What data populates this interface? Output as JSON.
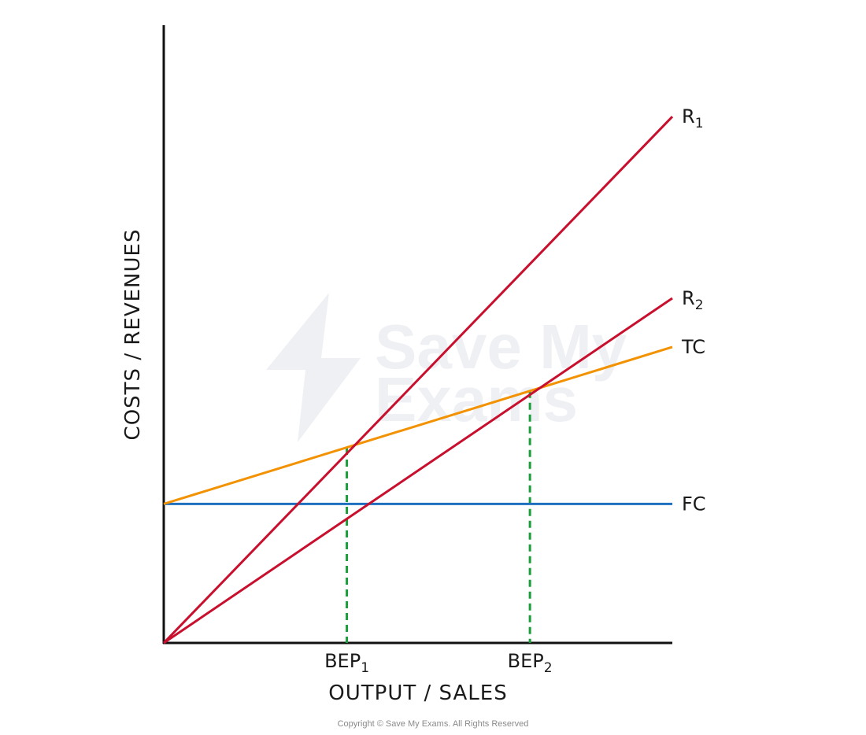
{
  "chart_data": {
    "type": "line",
    "xlabel": "OUTPUT / SALES",
    "ylabel": "COSTS / REVENUES",
    "xlim": [
      0,
      100
    ],
    "ylim": [
      0,
      100
    ],
    "grid": false,
    "series": [
      {
        "name": "FC",
        "label_base": "FC",
        "label_sub": "",
        "color": "#1f6fbf",
        "x": [
          0,
          100
        ],
        "y": [
          22.5,
          22.5
        ]
      },
      {
        "name": "TC",
        "label_base": "TC",
        "label_sub": "",
        "color": "#f39200",
        "x": [
          0,
          100
        ],
        "y": [
          22.5,
          47.9
        ]
      },
      {
        "name": "R1",
        "label_base": "R",
        "label_sub": "1",
        "color": "#c8102e",
        "x": [
          0,
          100
        ],
        "y": [
          0,
          85.2
        ]
      },
      {
        "name": "R2",
        "label_base": "R",
        "label_sub": "2",
        "color": "#c8102e",
        "x": [
          0,
          100
        ],
        "y": [
          0,
          55.8
        ]
      }
    ],
    "break_even_points": [
      {
        "name": "BEP1",
        "label_base": "BEP",
        "label_sub": "1",
        "x": 36,
        "y": 31.6,
        "color": "#1a9e3a"
      },
      {
        "name": "BEP2",
        "label_base": "BEP",
        "label_sub": "2",
        "x": 72,
        "y": 40.8,
        "color": "#1a9e3a"
      }
    ]
  },
  "watermark": {
    "line1": "Save My",
    "line2": "Exams"
  },
  "copyright": "Copyright © Save My Exams. All Rights Reserved"
}
